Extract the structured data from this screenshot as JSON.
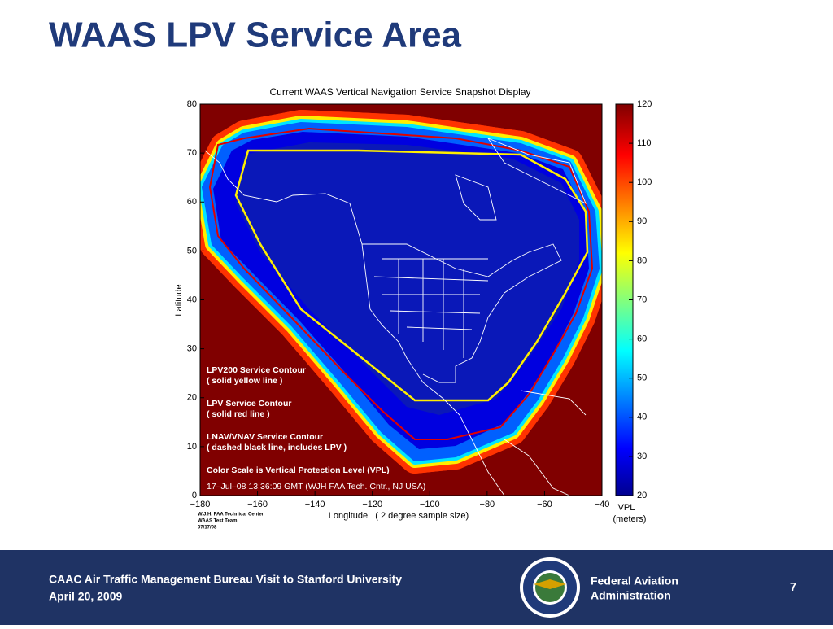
{
  "slide": {
    "title": "WAAS LPV Service Area"
  },
  "figure": {
    "title": "Current WAAS Vertical Navigation Service Snapshot Display",
    "x_label": "Longitude   ( 2 degree sample size)",
    "y_label": "Latitude",
    "xlim": [
      -180,
      -40
    ],
    "ylim": [
      0,
      80
    ],
    "xticks": [
      {
        "value": -180,
        "label": "−180"
      },
      {
        "value": -160,
        "label": "−160"
      },
      {
        "value": -140,
        "label": "−140"
      },
      {
        "value": -120,
        "label": "−120"
      },
      {
        "value": -100,
        "label": "−100"
      },
      {
        "value": -80,
        "label": "−80"
      },
      {
        "value": -60,
        "label": "−60"
      },
      {
        "value": -40,
        "label": "−40"
      }
    ],
    "yticks": [
      0,
      10,
      20,
      30,
      40,
      50,
      60,
      70,
      80
    ],
    "colorbar": {
      "label_lines": [
        "VPL",
        "(meters)"
      ],
      "lim": [
        20,
        120
      ],
      "ticks": [
        20,
        30,
        40,
        50,
        60,
        70,
        80,
        90,
        100,
        110,
        120
      ]
    },
    "annotations": [
      "LPV200 Service Contour",
      "( solid yellow line )",
      "LPV Service Contour",
      "( solid red line )",
      "LNAV/VNAV Service Contour",
      "( dashed black line, includes LPV )",
      "Color Scale is Vertical Protection Level (VPL)"
    ],
    "timestamp": "17–Jul–08 13:36:09 GMT  (WJH FAA Tech. Cntr., NJ USA)",
    "credits": [
      "W.J.H. FAA Technical Center",
      "WAAS Test Team",
      "07/17/08"
    ]
  },
  "footer": {
    "lines": [
      "CAAC Air Traffic Management Bureau Visit to Stanford University",
      "April 20, 2009"
    ],
    "agency": [
      "Federal Aviation",
      "Administration"
    ],
    "page": "7"
  }
}
